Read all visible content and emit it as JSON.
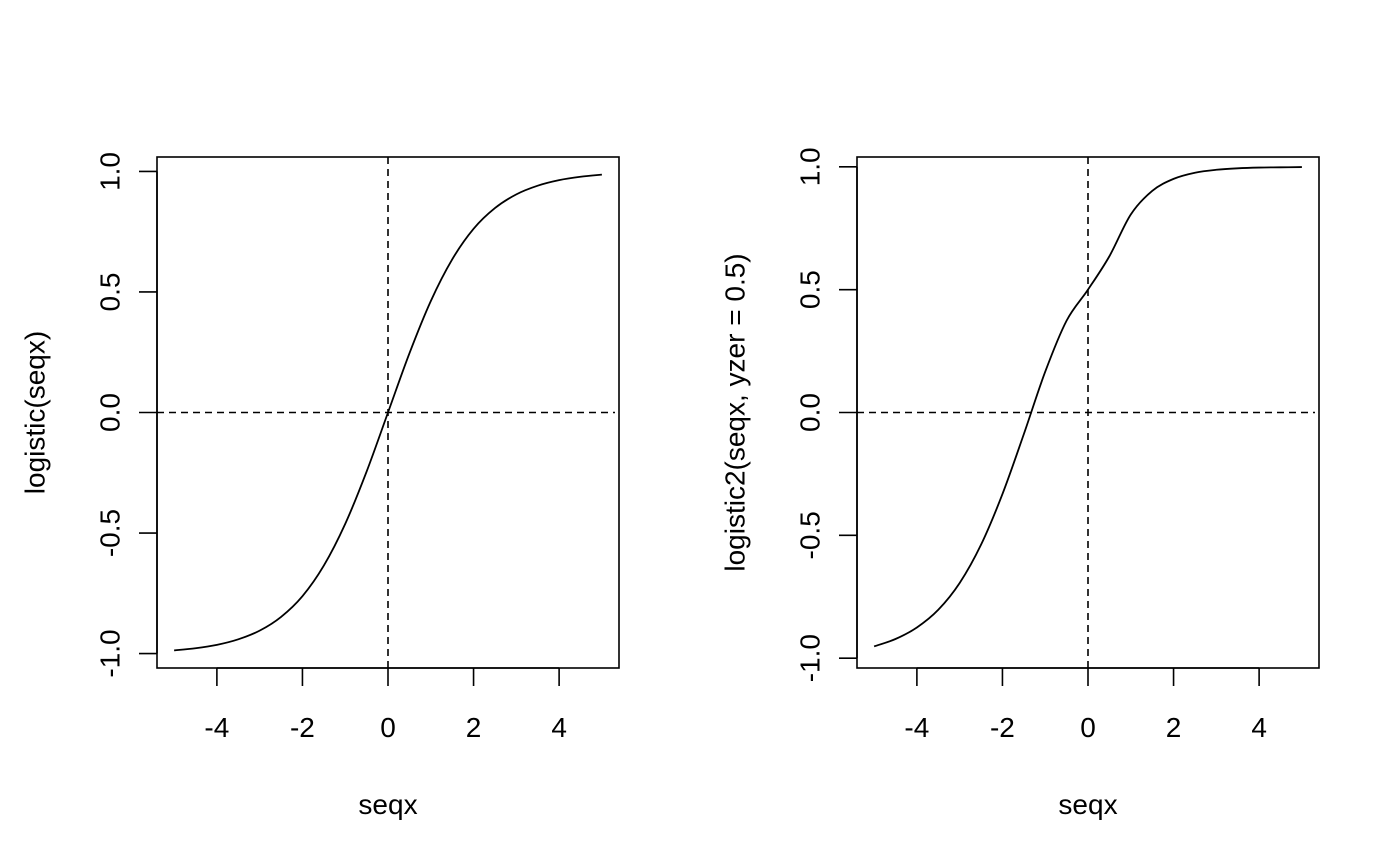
{
  "chart_data": [
    {
      "type": "line",
      "xlabel": "seqx",
      "ylabel": "logistic(seqx)",
      "xlim": [
        -5.4,
        5.4
      ],
      "ylim": [
        -1.06,
        1.06
      ],
      "x_ticks": [
        -4,
        -2,
        0,
        2,
        4
      ],
      "x_tick_labels": [
        "-4",
        "-2",
        "0",
        "2",
        "4"
      ],
      "y_ticks": [
        -1.0,
        -0.5,
        0.0,
        0.5,
        1.0
      ],
      "y_tick_labels": [
        "-1.0",
        "-0.5",
        "0.0",
        "0.5",
        "1.0"
      ],
      "grid": false,
      "reference_lines": {
        "h": 0,
        "v": 0,
        "style": "dashed"
      },
      "series": [
        {
          "x": [
            -5,
            -4.5,
            -4,
            -3.5,
            -3,
            -2.5,
            -2,
            -1.5,
            -1,
            -0.5,
            0,
            0.5,
            1,
            1.5,
            2,
            2.5,
            3,
            3.5,
            4,
            4.5,
            5
          ],
          "values": [
            -0.987,
            -0.978,
            -0.964,
            -0.941,
            -0.905,
            -0.848,
            -0.762,
            -0.635,
            -0.462,
            -0.245,
            0.0,
            0.245,
            0.462,
            0.635,
            0.762,
            0.848,
            0.905,
            0.941,
            0.964,
            0.978,
            0.987
          ]
        }
      ]
    },
    {
      "type": "line",
      "xlabel": "seqx",
      "ylabel": "logistic2(seqx, yzer = 0.5)",
      "xlim": [
        -5.4,
        5.4
      ],
      "ylim": [
        -1.04,
        1.04
      ],
      "x_ticks": [
        -4,
        -2,
        0,
        2,
        4
      ],
      "x_tick_labels": [
        "-4",
        "-2",
        "0",
        "2",
        "4"
      ],
      "y_ticks": [
        -1.0,
        -0.5,
        0.0,
        0.5,
        1.0
      ],
      "y_tick_labels": [
        "-1.0",
        "-0.5",
        "0.0",
        "0.5",
        "1.0"
      ],
      "grid": false,
      "reference_lines": {
        "h": 0,
        "v": 0,
        "style": "dashed"
      },
      "series": [
        {
          "x": [
            -5,
            -4.5,
            -4,
            -3.5,
            -3,
            -2.5,
            -2,
            -1.5,
            -1,
            -0.5,
            0,
            0.5,
            1,
            1.5,
            2,
            2.5,
            3,
            3.5,
            4,
            4.5,
            5
          ],
          "values": [
            -0.952,
            -0.922,
            -0.875,
            -0.803,
            -0.694,
            -0.538,
            -0.332,
            -0.088,
            0.166,
            0.374,
            0.5,
            0.636,
            0.806,
            0.902,
            0.951,
            0.976,
            0.988,
            0.994,
            0.997,
            0.998,
            0.999
          ]
        }
      ]
    }
  ]
}
